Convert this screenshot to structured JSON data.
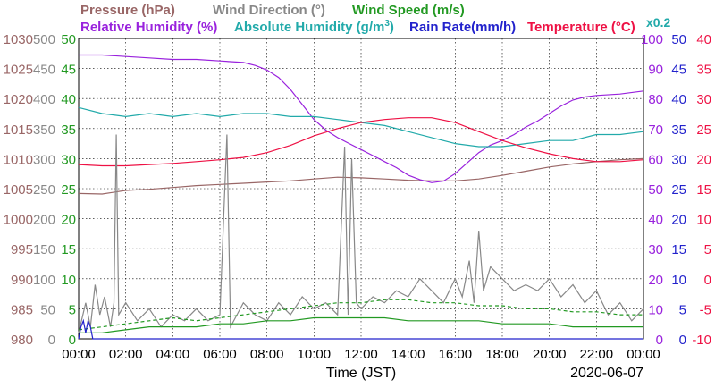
{
  "colors": {
    "pressure": "#996666",
    "wind_direction": "#888888",
    "wind_speed": "#229922",
    "relative_humidity": "#9922dd",
    "absolute_humidity": "#22aaaa",
    "rain_rate": "#2222cc",
    "temperature": "#ee1144",
    "frame": "#000000"
  },
  "chart_data": {
    "type": "line",
    "xlabel": "Time (JST)",
    "date": "2020-06-07",
    "x_range_hours": [
      0,
      24
    ],
    "x_ticks": [
      "00:00",
      "02:00",
      "04:00",
      "06:00",
      "08:00",
      "10:00",
      "12:00",
      "14:00",
      "16:00",
      "18:00",
      "20:00",
      "22:00",
      "00:00"
    ],
    "grid": true,
    "axes": {
      "pressure": {
        "label": "Pressure (hPa)",
        "range": [
          980,
          1030
        ],
        "ticks": [
          "1030",
          "1025",
          "1020",
          "1015",
          "1010",
          "1005",
          "1000",
          "995",
          "990",
          "985",
          "980"
        ]
      },
      "wind_dir": {
        "label": "Wind Direction (°)",
        "range": [
          0,
          500
        ],
        "ticks": [
          "500",
          "450",
          "400",
          "350",
          "300",
          "250",
          "200",
          "150",
          "100",
          "50",
          "0"
        ]
      },
      "wind_speed": {
        "label": "Wind Speed (m/s)",
        "range": [
          0,
          50
        ],
        "ticks": [
          "50",
          "45",
          "40",
          "35",
          "30",
          "25",
          "20",
          "15",
          "10",
          "5",
          "0"
        ]
      },
      "rh": {
        "label": "Relative Humidity (%)",
        "range": [
          0,
          100
        ],
        "ticks": [
          "100",
          "90",
          "80",
          "70",
          "60",
          "50",
          "40",
          "30",
          "20",
          "10",
          "0"
        ]
      },
      "abs_hum": {
        "label_main": "Absolute Humidity (g/m",
        "label_sup": "3",
        "label_end": ")",
        "range": [
          0,
          50
        ]
      },
      "rain": {
        "label": "Rain Rate(mm/h)",
        "range": [
          0,
          50
        ],
        "ticks": [
          "50",
          "45",
          "40",
          "35",
          "30",
          "25",
          "20",
          "15",
          "10",
          "5",
          "0"
        ]
      },
      "temperature": {
        "label": "Temperature (°C)",
        "range": [
          -10,
          40
        ],
        "ticks": [
          "40",
          "35",
          "30",
          "25",
          "20",
          "15",
          "10",
          "5",
          "0",
          "-5",
          "-10"
        ]
      },
      "scale_note": "x0.2"
    },
    "series": [
      {
        "name": "Pressure (hPa)",
        "key": "pressure",
        "points": [
          [
            0,
            1004.2
          ],
          [
            1,
            1004.1
          ],
          [
            2,
            1004.7
          ],
          [
            3,
            1004.9
          ],
          [
            4,
            1005.2
          ],
          [
            5,
            1005.5
          ],
          [
            6,
            1005.7
          ],
          [
            7,
            1005.9
          ],
          [
            8,
            1006.1
          ],
          [
            9,
            1006.3
          ],
          [
            10,
            1006.6
          ],
          [
            11,
            1006.9
          ],
          [
            12,
            1006.8
          ],
          [
            13,
            1006.6
          ],
          [
            14,
            1006.4
          ],
          [
            15,
            1006.3
          ],
          [
            16,
            1006.3
          ],
          [
            17,
            1006.6
          ],
          [
            18,
            1007.2
          ],
          [
            19,
            1007.9
          ],
          [
            20,
            1008.6
          ],
          [
            21,
            1009.1
          ],
          [
            22,
            1009.5
          ],
          [
            23,
            1009.8
          ],
          [
            24,
            1010.0
          ]
        ]
      },
      {
        "name": "Relative Humidity (%)",
        "key": "rh",
        "points": [
          [
            0,
            94.5
          ],
          [
            1,
            94.5
          ],
          [
            2,
            94.0
          ],
          [
            3,
            93.5
          ],
          [
            4,
            93.0
          ],
          [
            5,
            93.0
          ],
          [
            6,
            92.5
          ],
          [
            7,
            92.0
          ],
          [
            7.5,
            91.0
          ],
          [
            8,
            89.5
          ],
          [
            8.5,
            87.0
          ],
          [
            9,
            83.0
          ],
          [
            9.5,
            78.0
          ],
          [
            10,
            73.0
          ],
          [
            10.5,
            69.5
          ],
          [
            11,
            67.0
          ],
          [
            11.5,
            65.0
          ],
          [
            12,
            63.0
          ],
          [
            12.5,
            61.0
          ],
          [
            13,
            59.0
          ],
          [
            13.5,
            57.0
          ],
          [
            14,
            54.5
          ],
          [
            14.5,
            53.0
          ],
          [
            15,
            52.0
          ],
          [
            15.5,
            52.5
          ],
          [
            16,
            55.0
          ],
          [
            16.5,
            58.5
          ],
          [
            17,
            62.0
          ],
          [
            17.5,
            64.5
          ],
          [
            18,
            66.0
          ],
          [
            18.5,
            68.0
          ],
          [
            19,
            70.5
          ],
          [
            19.5,
            72.5
          ],
          [
            20,
            75.0
          ],
          [
            20.5,
            77.5
          ],
          [
            21,
            79.5
          ],
          [
            21.5,
            80.5
          ],
          [
            22,
            81.0
          ],
          [
            23,
            81.5
          ],
          [
            24,
            82.5
          ]
        ]
      },
      {
        "name": "Absolute Humidity (g/m3)",
        "key": "abs_hum",
        "points": [
          [
            0,
            38.5
          ],
          [
            1,
            37.5
          ],
          [
            2,
            37.0
          ],
          [
            3,
            37.5
          ],
          [
            4,
            37.0
          ],
          [
            5,
            37.5
          ],
          [
            6,
            37.0
          ],
          [
            7,
            37.5
          ],
          [
            8,
            37.5
          ],
          [
            9,
            37.0
          ],
          [
            10,
            37.0
          ],
          [
            11,
            36.5
          ],
          [
            12,
            36.0
          ],
          [
            13,
            35.5
          ],
          [
            14,
            34.5
          ],
          [
            15,
            33.5
          ],
          [
            16,
            32.5
          ],
          [
            17,
            32.0
          ],
          [
            18,
            32.0
          ],
          [
            19,
            32.5
          ],
          [
            20,
            33.0
          ],
          [
            21,
            33.0
          ],
          [
            22,
            34.0
          ],
          [
            23,
            34.0
          ],
          [
            24,
            34.5
          ]
        ]
      },
      {
        "name": "Temperature (°C)",
        "key": "temperature",
        "points": [
          [
            0,
            19.0
          ],
          [
            1,
            18.8
          ],
          [
            2,
            18.8
          ],
          [
            3,
            19.0
          ],
          [
            4,
            19.2
          ],
          [
            5,
            19.5
          ],
          [
            6,
            19.8
          ],
          [
            7,
            20.2
          ],
          [
            8,
            21.0
          ],
          [
            9,
            22.2
          ],
          [
            10,
            23.8
          ],
          [
            11,
            25.0
          ],
          [
            12,
            26.0
          ],
          [
            13,
            26.5
          ],
          [
            14,
            26.8
          ],
          [
            15,
            26.8
          ],
          [
            16,
            26.0
          ],
          [
            17,
            24.5
          ],
          [
            18,
            23.0
          ],
          [
            19,
            21.8
          ],
          [
            20,
            20.8
          ],
          [
            21,
            20.0
          ],
          [
            22,
            19.5
          ],
          [
            23,
            19.5
          ],
          [
            24,
            19.8
          ]
        ]
      },
      {
        "name": "Wind Direction (°)",
        "key": "wind_dir",
        "points": [
          [
            0,
            10
          ],
          [
            0.3,
            60
          ],
          [
            0.5,
            20
          ],
          [
            0.7,
            90
          ],
          [
            0.9,
            40
          ],
          [
            1.1,
            70
          ],
          [
            1.35,
            20
          ],
          [
            1.5,
            60
          ],
          [
            1.6,
            340
          ],
          [
            1.7,
            40
          ],
          [
            2,
            60
          ],
          [
            2.5,
            30
          ],
          [
            3,
            50
          ],
          [
            3.5,
            20
          ],
          [
            4,
            40
          ],
          [
            4.5,
            30
          ],
          [
            5,
            50
          ],
          [
            5.5,
            30
          ],
          [
            6,
            40
          ],
          [
            6.3,
            340
          ],
          [
            6.45,
            20
          ],
          [
            7,
            60
          ],
          [
            7.5,
            40
          ],
          [
            8,
            30
          ],
          [
            8.5,
            60
          ],
          [
            9,
            40
          ],
          [
            9.5,
            70
          ],
          [
            10,
            50
          ],
          [
            10.5,
            60
          ],
          [
            11,
            40
          ],
          [
            11.3,
            320
          ],
          [
            11.45,
            40
          ],
          [
            11.6,
            300
          ],
          [
            11.8,
            60
          ],
          [
            12,
            50
          ],
          [
            12.5,
            70
          ],
          [
            13,
            60
          ],
          [
            13.5,
            80
          ],
          [
            14,
            70
          ],
          [
            14.5,
            100
          ],
          [
            15,
            80
          ],
          [
            15.5,
            60
          ],
          [
            16,
            100
          ],
          [
            16.3,
            70
          ],
          [
            16.6,
            130
          ],
          [
            16.8,
            60
          ],
          [
            17,
            180
          ],
          [
            17.2,
            80
          ],
          [
            17.5,
            120
          ],
          [
            18,
            100
          ],
          [
            18.5,
            80
          ],
          [
            19,
            90
          ],
          [
            19.5,
            80
          ],
          [
            20,
            100
          ],
          [
            20.5,
            70
          ],
          [
            21,
            90
          ],
          [
            21.5,
            60
          ],
          [
            22,
            80
          ],
          [
            22.5,
            40
          ],
          [
            23,
            60
          ],
          [
            23.5,
            30
          ],
          [
            24,
            50
          ]
        ]
      },
      {
        "name": "Wind Speed (m/s)",
        "key": "wind_speed",
        "dashed": true,
        "points": [
          [
            0,
            1.5
          ],
          [
            1,
            2
          ],
          [
            2,
            2.5
          ],
          [
            3,
            3
          ],
          [
            4,
            3.5
          ],
          [
            5,
            3
          ],
          [
            6,
            3.5
          ],
          [
            7,
            4
          ],
          [
            8,
            4.5
          ],
          [
            9,
            5
          ],
          [
            10,
            5.5
          ],
          [
            11,
            6
          ],
          [
            12,
            6
          ],
          [
            13,
            6.5
          ],
          [
            14,
            6.5
          ],
          [
            15,
            6
          ],
          [
            16,
            6
          ],
          [
            17,
            5.5
          ],
          [
            18,
            5.5
          ],
          [
            19,
            5
          ],
          [
            20,
            5
          ],
          [
            21,
            4.5
          ],
          [
            22,
            4.5
          ],
          [
            23,
            4
          ],
          [
            24,
            4
          ]
        ]
      },
      {
        "name": "Wind Speed (m/s)",
        "key": "wind_speed",
        "points": [
          [
            0,
            1
          ],
          [
            1,
            1
          ],
          [
            2,
            1.5
          ],
          [
            3,
            2
          ],
          [
            4,
            2
          ],
          [
            5,
            2
          ],
          [
            6,
            2.5
          ],
          [
            7,
            2.5
          ],
          [
            8,
            3
          ],
          [
            9,
            3
          ],
          [
            10,
            3.5
          ],
          [
            11,
            3.5
          ],
          [
            12,
            3.5
          ],
          [
            13,
            3.5
          ],
          [
            14,
            3
          ],
          [
            15,
            3
          ],
          [
            16,
            3
          ],
          [
            17,
            3
          ],
          [
            18,
            2.5
          ],
          [
            19,
            2.5
          ],
          [
            20,
            2.5
          ],
          [
            21,
            2
          ],
          [
            22,
            2
          ],
          [
            23,
            2
          ],
          [
            24,
            2
          ]
        ]
      },
      {
        "name": "Rain Rate(mm/h)",
        "key": "rain",
        "points": [
          [
            0,
            0
          ],
          [
            0.1,
            2
          ],
          [
            0.2,
            3
          ],
          [
            0.3,
            1
          ],
          [
            0.4,
            3
          ],
          [
            0.5,
            2
          ],
          [
            0.6,
            0
          ],
          [
            24,
            0
          ]
        ]
      }
    ]
  }
}
